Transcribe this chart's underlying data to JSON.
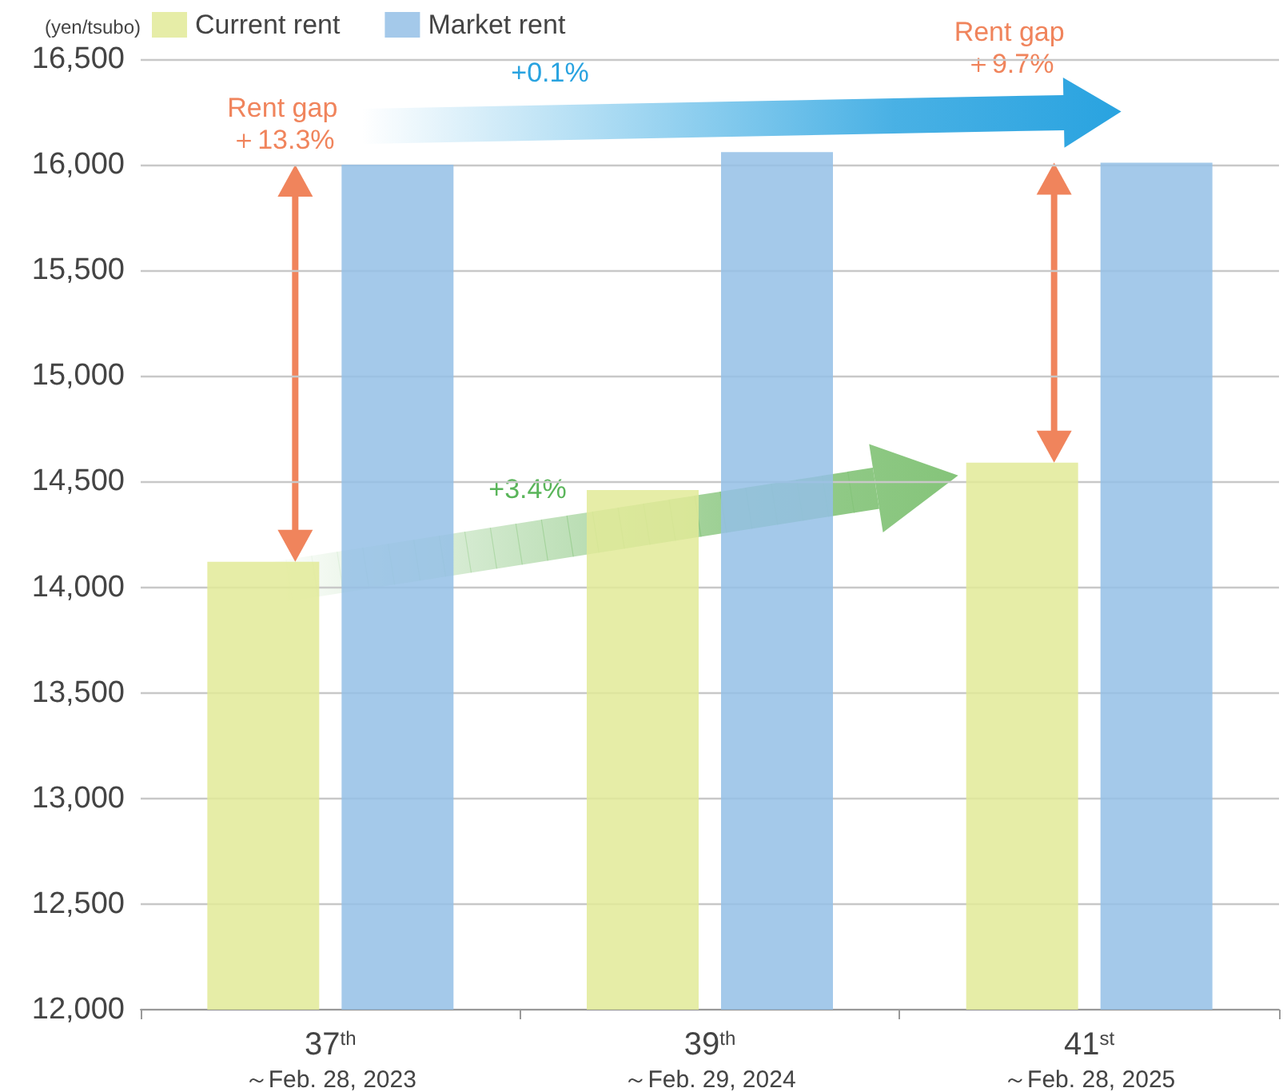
{
  "chart_data": {
    "type": "bar",
    "ylabel": "(yen/tsubo)",
    "categories": [
      "37$^{th}$\n～Feb. 28, 2023",
      "39$^{th}$\n～Feb. 29, 2024",
      "41$^{st}$\n～Feb. 28, 2025"
    ],
    "series": [
      {
        "name": "Current rent",
        "color": "#e2ea98",
        "values": [
          14120,
          14460,
          14590
        ]
      },
      {
        "name": "Market rent",
        "color": "#94c0e6",
        "values": [
          16000,
          16060,
          16010
        ]
      }
    ],
    "ylim": [
      12000,
      16500
    ],
    "yticks": [
      {
        "value": 12000,
        "label": "12,000"
      },
      {
        "value": 12500,
        "label": "12,500"
      },
      {
        "value": 13000,
        "label": "13,000"
      },
      {
        "value": 13500,
        "label": "13,500"
      },
      {
        "value": 14000,
        "label": "14,000"
      },
      {
        "value": 14500,
        "label": "14,500"
      },
      {
        "value": 15000,
        "label": "15,000"
      },
      {
        "value": 15500,
        "label": "15,500"
      },
      {
        "value": 16000,
        "label": "16,000"
      },
      {
        "value": 16500,
        "label": "16,500"
      }
    ],
    "grid": "y",
    "legend": "top left",
    "annotations": [
      "Rent gap\n＋13.3%",
      "+0.1%",
      "Rent gap\n＋9.7%",
      "+3.4%"
    ]
  }
}
